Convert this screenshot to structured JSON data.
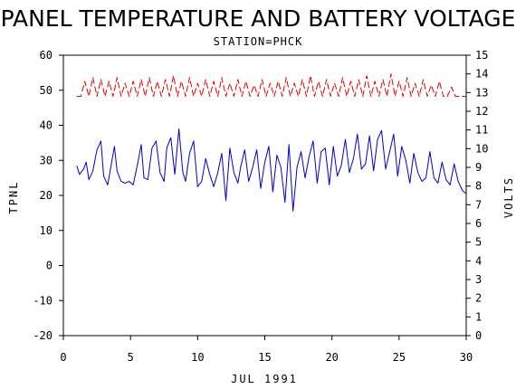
{
  "chart_data": {
    "type": "line",
    "title": "PANEL TEMPERATURE AND BATTERY VOLTAGE",
    "subtitle": "STATION=PHCK",
    "xlabel": "JUL 1991",
    "ylabel_left": "TPNL",
    "ylabel_right": "VOLTS",
    "xlim": [
      0,
      30
    ],
    "ylim_left": [
      -20,
      60
    ],
    "ylim_right": [
      0,
      15
    ],
    "x_ticks": [
      "0",
      "5",
      "10",
      "15",
      "20",
      "25",
      "30"
    ],
    "y_left_ticks": [
      "-20",
      "-10",
      "0",
      "10",
      "20",
      "30",
      "40",
      "50",
      "60"
    ],
    "y_right_ticks": [
      "0",
      "1",
      "2",
      "3",
      "4",
      "5",
      "6",
      "7",
      "8",
      "9",
      "10",
      "11",
      "12",
      "13",
      "14",
      "15"
    ],
    "grid": false,
    "legend": "none",
    "colors": {
      "temperature": "#0000cc",
      "voltage": "#dd0000",
      "axis": "#000000"
    },
    "series": [
      {
        "axis": "left",
        "x": [
          1.0,
          1.2,
          1.5,
          1.7,
          1.9,
          2.2,
          2.5,
          2.8,
          3.0,
          3.3,
          3.6,
          3.8,
          4.0,
          4.3,
          4.6,
          4.9,
          5.2,
          5.5,
          5.8,
          6.0,
          6.3,
          6.6,
          6.9,
          7.2,
          7.5,
          7.7,
          8.0,
          8.3,
          8.6,
          8.9,
          9.1,
          9.4,
          9.7,
          10.0,
          10.3,
          10.6,
          10.9,
          11.2,
          11.5,
          11.8,
          12.1,
          12.4,
          12.7,
          13.0,
          13.2,
          13.5,
          13.8,
          14.1,
          14.4,
          14.7,
          15.0,
          15.3,
          15.6,
          15.9,
          16.2,
          16.5,
          16.8,
          17.1,
          17.4,
          17.7,
          18.0,
          18.3,
          18.6,
          18.9,
          19.2,
          19.5,
          19.8,
          20.1,
          20.4,
          20.7,
          21.0,
          21.3,
          21.6,
          21.9,
          22.2,
          22.5,
          22.8,
          23.1,
          23.4,
          23.7,
          24.0,
          24.3,
          24.6,
          24.9,
          25.2,
          25.5,
          25.8,
          26.1,
          26.4,
          26.7,
          27.0,
          27.3,
          27.6,
          27.9,
          28.2,
          28.5,
          28.8,
          29.1,
          29.4,
          29.7,
          30.0
        ],
        "values": [
          28.5,
          26.0,
          27.5,
          29.5,
          24.5,
          27.0,
          33.0,
          35.5,
          25.5,
          23.0,
          29.5,
          34.0,
          27.0,
          24.0,
          23.5,
          24.0,
          23.0,
          28.5,
          34.5,
          25.0,
          24.5,
          33.5,
          35.5,
          26.5,
          24.0,
          33.5,
          36.5,
          26.0,
          39.0,
          26.5,
          24.0,
          32.0,
          35.5,
          22.5,
          24.0,
          30.5,
          26.0,
          22.5,
          26.5,
          32.0,
          18.5,
          33.5,
          26.5,
          23.5,
          28.0,
          33.0,
          24.0,
          28.0,
          33.0,
          22.0,
          29.5,
          34.0,
          21.0,
          31.5,
          28.0,
          18.0,
          34.5,
          15.5,
          28.0,
          32.5,
          25.0,
          31.0,
          35.5,
          23.5,
          32.5,
          33.5,
          23.0,
          34.0,
          25.5,
          28.5,
          36.0,
          26.5,
          30.5,
          37.5,
          27.5,
          29.0,
          37.0,
          27.0,
          36.0,
          38.5,
          27.5,
          32.5,
          37.5,
          25.5,
          34.0,
          30.0,
          23.5,
          32.0,
          26.5,
          24.0,
          25.0,
          32.5,
          25.0,
          23.5,
          29.5,
          24.5,
          23.0,
          29.0,
          24.0,
          21.5,
          20.5
        ]
      },
      {
        "axis": "right",
        "x": [
          1.0,
          1.3,
          1.6,
          1.9,
          2.2,
          2.5,
          2.8,
          3.1,
          3.4,
          3.7,
          4.0,
          4.3,
          4.6,
          4.9,
          5.2,
          5.5,
          5.8,
          6.1,
          6.4,
          6.7,
          7.0,
          7.3,
          7.6,
          7.9,
          8.2,
          8.5,
          8.8,
          9.1,
          9.4,
          9.7,
          10.0,
          10.3,
          10.6,
          10.9,
          11.2,
          11.5,
          11.8,
          12.1,
          12.4,
          12.7,
          13.0,
          13.3,
          13.6,
          13.9,
          14.2,
          14.5,
          14.8,
          15.1,
          15.4,
          15.7,
          16.0,
          16.3,
          16.6,
          16.9,
          17.2,
          17.5,
          17.8,
          18.1,
          18.4,
          18.7,
          19.0,
          19.3,
          19.6,
          19.9,
          20.2,
          20.5,
          20.8,
          21.1,
          21.4,
          21.7,
          22.0,
          22.3,
          22.6,
          22.9,
          23.2,
          23.5,
          23.8,
          24.1,
          24.4,
          24.7,
          25.0,
          25.3,
          25.6,
          25.9,
          26.2,
          26.5,
          26.8,
          27.1,
          27.4,
          27.7,
          28.0,
          28.3,
          28.6,
          28.9,
          29.2,
          29.5,
          29.8,
          30.0
        ],
        "values": [
          12.8,
          12.8,
          13.6,
          12.8,
          13.8,
          12.8,
          13.7,
          12.8,
          13.6,
          12.8,
          13.8,
          12.8,
          13.5,
          12.8,
          13.6,
          12.8,
          13.7,
          12.8,
          13.8,
          12.8,
          13.6,
          12.8,
          13.7,
          12.8,
          13.9,
          12.8,
          13.6,
          12.8,
          13.8,
          12.8,
          13.5,
          12.8,
          13.7,
          12.8,
          13.6,
          12.8,
          13.8,
          12.8,
          13.5,
          12.8,
          13.7,
          12.8,
          13.6,
          12.8,
          13.4,
          12.8,
          13.7,
          12.8,
          13.5,
          12.8,
          13.6,
          12.8,
          13.8,
          12.8,
          13.5,
          12.8,
          13.7,
          12.8,
          13.9,
          12.8,
          13.6,
          12.8,
          13.7,
          12.8,
          13.5,
          12.8,
          13.8,
          12.8,
          13.6,
          12.8,
          13.7,
          12.8,
          13.9,
          12.8,
          13.6,
          12.8,
          13.7,
          12.8,
          14.0,
          12.8,
          13.6,
          12.8,
          13.8,
          12.8,
          13.5,
          12.8,
          13.7,
          12.8,
          13.4,
          12.8,
          13.6,
          12.8,
          12.8,
          13.3,
          12.8,
          12.8,
          12.8,
          12.8
        ]
      }
    ]
  }
}
